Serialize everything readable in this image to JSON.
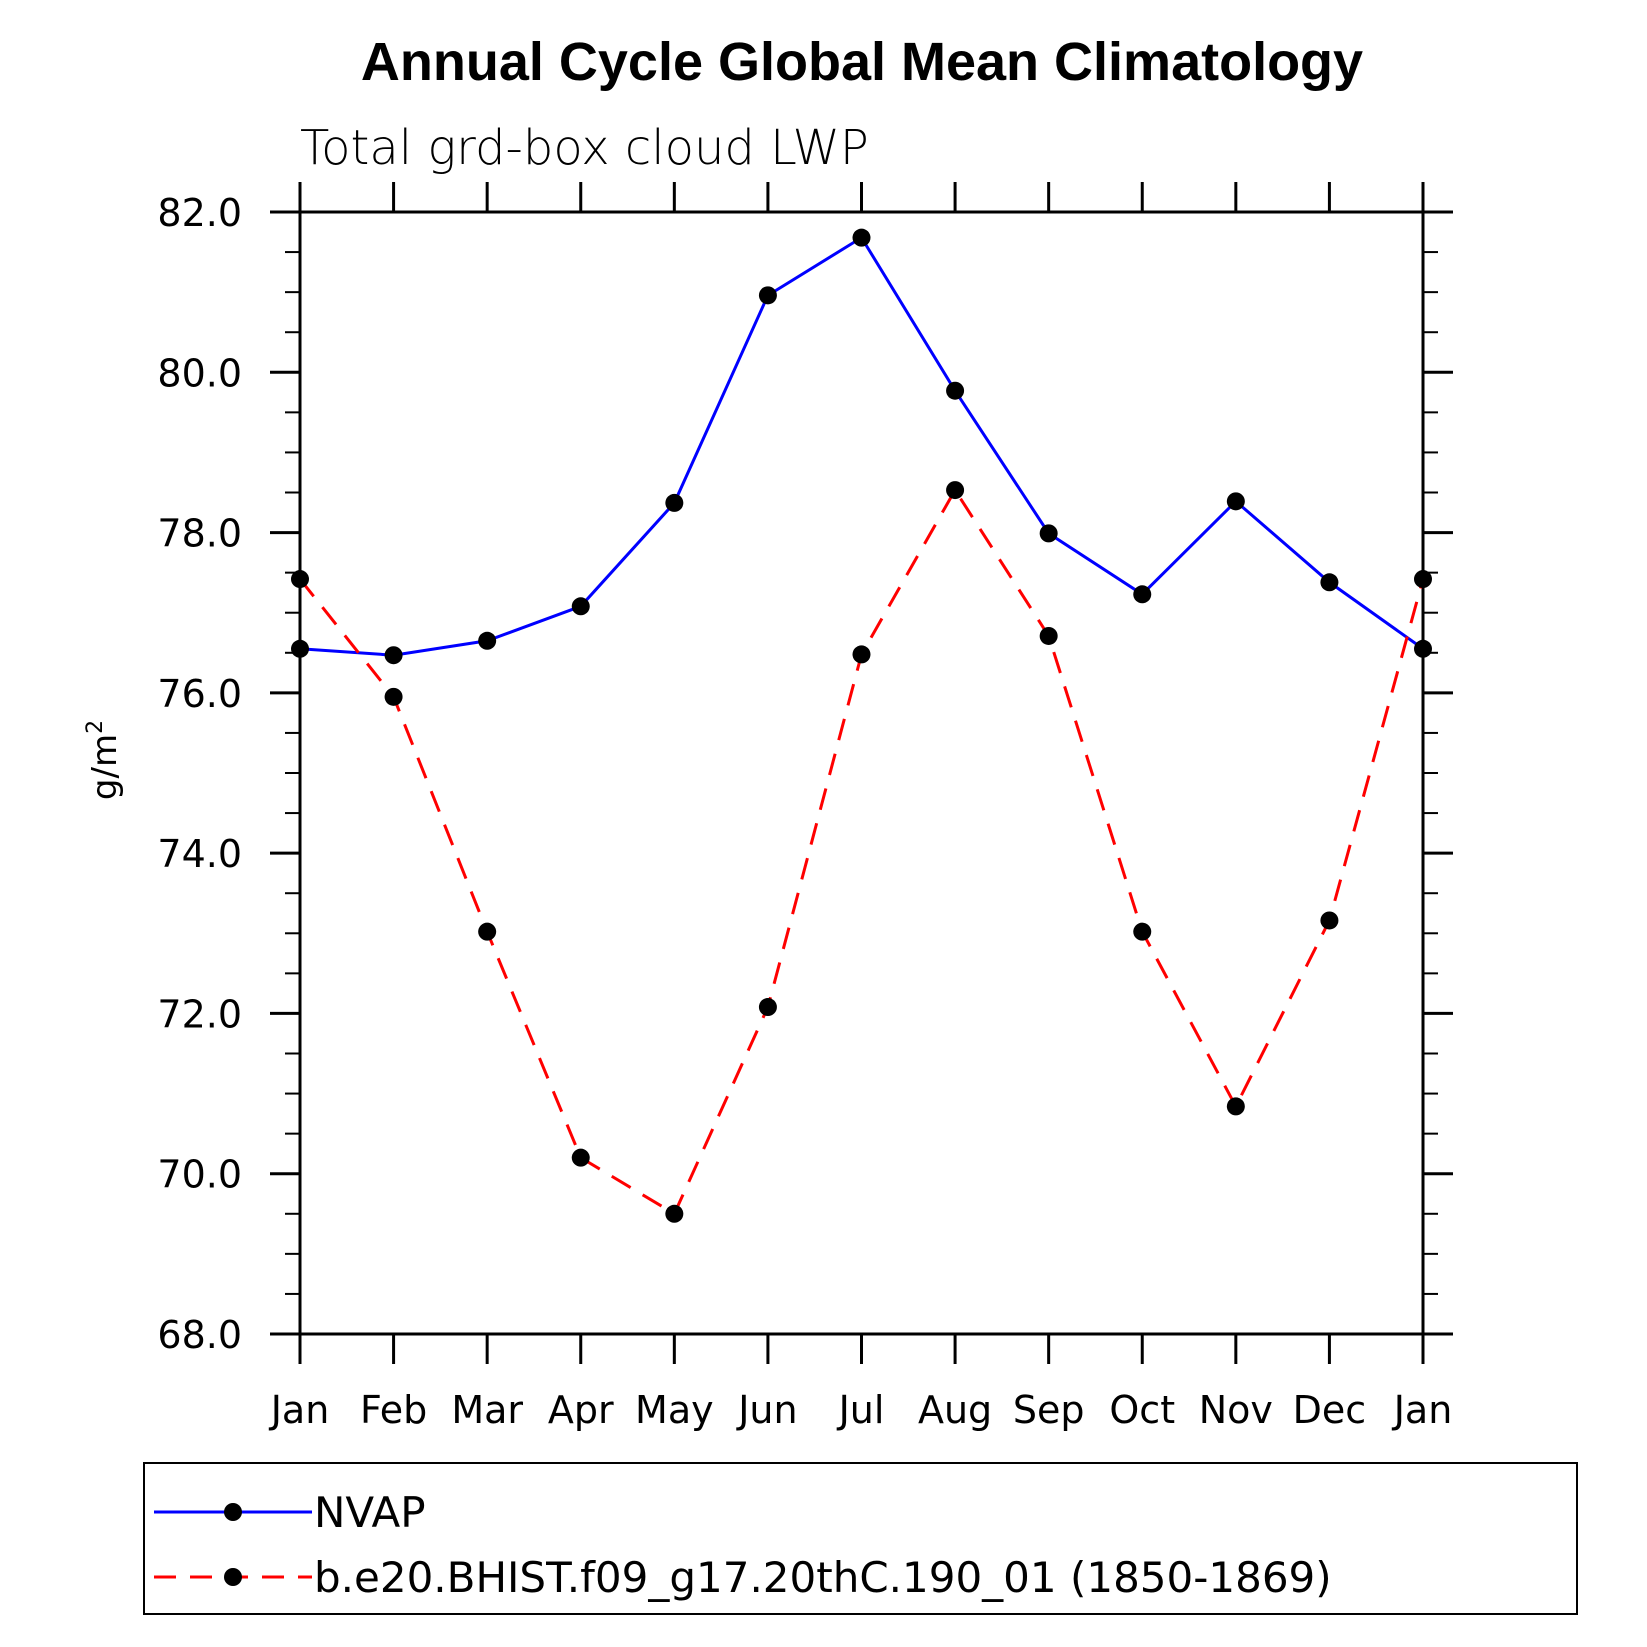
{
  "chart_data": {
    "type": "line",
    "title": "Annual Cycle Global Mean Climatology",
    "subtitle": "Total grd-box cloud LWP",
    "ylabel": "g/m",
    "ylabel_sup": "2",
    "ylim": [
      68.0,
      82.0
    ],
    "yticks": [
      68.0,
      70.0,
      72.0,
      74.0,
      76.0,
      78.0,
      80.0,
      82.0
    ],
    "ytick_labels": [
      "68.0",
      "70.0",
      "72.0",
      "74.0",
      "76.0",
      "78.0",
      "80.0",
      "82.0"
    ],
    "categories": [
      "Jan",
      "Feb",
      "Mar",
      "Apr",
      "May",
      "Jun",
      "Jul",
      "Aug",
      "Sep",
      "Oct",
      "Nov",
      "Dec",
      "Jan"
    ],
    "series": [
      {
        "name": "NVAP",
        "color": "#0000ff",
        "dash": "solid",
        "values": [
          76.55,
          76.47,
          76.65,
          77.08,
          78.37,
          80.96,
          81.68,
          79.77,
          77.99,
          77.23,
          78.39,
          77.38,
          76.55
        ]
      },
      {
        "name": "b.e20.BHIST.f09_g17.20thC.190_01 (1850-1869)",
        "color": "#ff0000",
        "dash": "dashed",
        "values": [
          77.42,
          75.95,
          73.02,
          70.2,
          69.5,
          72.08,
          76.48,
          78.53,
          76.71,
          73.02,
          70.84,
          73.16,
          77.42
        ]
      }
    ],
    "grid": false,
    "legend_placement": "bottom"
  }
}
